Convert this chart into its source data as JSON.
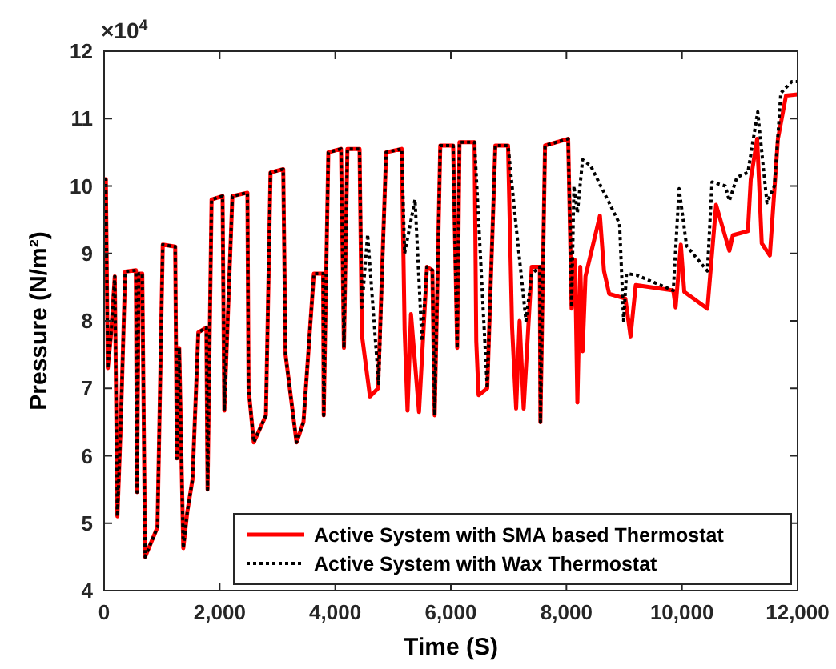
{
  "chart_data": {
    "type": "line",
    "xlabel": "Time (S)",
    "ylabel": "Pressure (N/m²)",
    "annotations": [
      "×10$^{4}$"
    ],
    "xlim": [
      0,
      12000
    ],
    "xticks": [
      0,
      {
        "value": 2000,
        "label": "2,000"
      },
      {
        "value": 4000,
        "label": "4,000"
      },
      {
        "value": 6000,
        "label": "6,000"
      },
      {
        "value": 8000,
        "label": "8,000"
      },
      {
        "value": 10000,
        "label": "10,000"
      },
      {
        "value": 12000,
        "label": "12,000"
      }
    ],
    "ylim": [
      4,
      12
    ],
    "yticks": [
      4,
      5,
      6,
      7,
      8,
      9,
      10,
      11,
      12
    ],
    "grid": false,
    "legend": "bottom right",
    "marker": "none",
    "series": [
      {
        "name": "Active System with SMA based Thermostat",
        "color": "#ff0000",
        "line_style": "solid",
        "x": [
          0,
          30,
          64,
          120,
          185,
          230,
          290,
          365,
          550,
          570,
          600,
          660,
          710,
          923,
          1015,
          1230,
          1260,
          1300,
          1370,
          1440,
          1530,
          1630,
          1770,
          1790,
          1860,
          2050,
          2080,
          2220,
          2480,
          2500,
          2590,
          2800,
          2880,
          3100,
          3140,
          3330,
          3450,
          3630,
          3790,
          3800,
          3880,
          4100,
          4150,
          4210,
          4420,
          4460,
          4600,
          4740,
          4880,
          5150,
          5200,
          5250,
          5310,
          5449,
          5587,
          5680,
          5720,
          5817,
          6040,
          6110,
          6150,
          6410,
          6440,
          6480,
          6630,
          6770,
          6990,
          7060,
          7130,
          7190,
          7260,
          7400,
          7540,
          7550,
          7630,
          8030,
          8090,
          8150,
          8190,
          8240,
          8280,
          8330,
          8580,
          8650,
          8740,
          9020,
          9110,
          9200,
          9850,
          9890,
          9980,
          10040,
          10440,
          10590,
          10820,
          10880,
          11140,
          11190,
          11300,
          11380,
          11520,
          11660,
          11800,
          12000
        ],
        "values": [
          10.1,
          10.1,
          7.3,
          7.8,
          8.66,
          5.1,
          6.5,
          8.73,
          8.75,
          5.46,
          8.7,
          8.7,
          4.5,
          4.94,
          9.13,
          9.1,
          5.96,
          7.6,
          4.63,
          5.17,
          5.65,
          7.83,
          7.9,
          5.5,
          9.8,
          9.85,
          6.67,
          9.85,
          9.9,
          7.0,
          6.2,
          6.6,
          10.2,
          10.25,
          7.5,
          6.2,
          6.5,
          8.7,
          8.7,
          6.6,
          10.5,
          10.55,
          7.6,
          10.55,
          10.55,
          7.8,
          6.88,
          7.0,
          10.5,
          10.55,
          7.87,
          6.67,
          8.1,
          6.65,
          8.8,
          8.75,
          6.6,
          10.6,
          10.6,
          7.6,
          10.65,
          10.65,
          7.7,
          6.9,
          7.0,
          10.6,
          10.6,
          7.9,
          6.7,
          8.0,
          6.7,
          8.8,
          8.8,
          6.5,
          10.6,
          10.7,
          8.18,
          8.9,
          6.79,
          8.8,
          7.55,
          8.66,
          9.56,
          8.74,
          8.4,
          8.33,
          7.77,
          8.53,
          8.45,
          8.2,
          9.13,
          8.43,
          8.18,
          9.72,
          9.04,
          9.27,
          9.33,
          10.1,
          10.7,
          9.15,
          8.97,
          10.7,
          11.34,
          11.36
        ]
      },
      {
        "name": "Active System with Wax Thermostat",
        "color": "#000000",
        "line_style": "dotted",
        "x": [
          0,
          30,
          64,
          120,
          185,
          230,
          290,
          365,
          550,
          570,
          600,
          660,
          710,
          923,
          1015,
          1230,
          1260,
          1300,
          1370,
          1440,
          1530,
          1630,
          1770,
          1790,
          1860,
          2050,
          2080,
          2220,
          2480,
          2500,
          2590,
          2800,
          2880,
          3100,
          3140,
          3330,
          3450,
          3630,
          3790,
          3800,
          3880,
          4100,
          4150,
          4210,
          4420,
          4460,
          4560,
          4750,
          4880,
          5150,
          5200,
          5380,
          5500,
          5587,
          5680,
          5720,
          5817,
          6040,
          6080,
          6110,
          6150,
          6410,
          6480,
          6630,
          6770,
          6990,
          7130,
          7300,
          7400,
          7540,
          7550,
          7630,
          8030,
          8090,
          8130,
          8190,
          8280,
          8420,
          8920,
          8990,
          9040,
          9210,
          9850,
          9950,
          10080,
          10440,
          10520,
          10750,
          10820,
          10950,
          11140,
          11310,
          11470,
          11600,
          11710,
          11900,
          12000
        ],
        "values": [
          10.1,
          10.1,
          7.3,
          7.8,
          8.66,
          5.1,
          6.5,
          8.73,
          8.75,
          5.46,
          8.7,
          8.7,
          4.5,
          4.94,
          9.13,
          9.1,
          5.96,
          7.6,
          4.63,
          5.17,
          5.65,
          7.83,
          7.9,
          5.5,
          9.8,
          9.85,
          6.67,
          9.85,
          9.9,
          7.0,
          6.2,
          6.6,
          10.2,
          10.25,
          7.5,
          6.2,
          6.5,
          8.7,
          8.7,
          6.6,
          10.5,
          10.55,
          7.6,
          10.55,
          10.55,
          8.2,
          9.28,
          7.07,
          10.5,
          10.55,
          9.0,
          9.8,
          7.7,
          8.8,
          8.75,
          6.6,
          10.6,
          10.6,
          8.8,
          7.6,
          10.65,
          10.65,
          9.5,
          7.0,
          10.6,
          10.6,
          9.4,
          8.0,
          8.7,
          8.8,
          6.5,
          10.6,
          10.7,
          8.2,
          10.0,
          9.6,
          10.39,
          10.3,
          9.44,
          8.0,
          8.7,
          8.68,
          8.45,
          9.96,
          9.11,
          8.74,
          10.06,
          10.0,
          9.78,
          10.13,
          10.2,
          11.1,
          9.75,
          10.0,
          11.38,
          11.55,
          11.55
        ]
      }
    ]
  }
}
